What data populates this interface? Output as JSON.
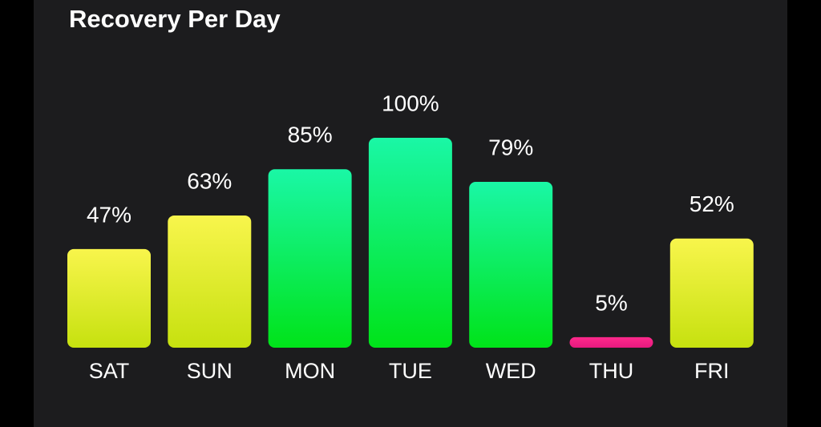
{
  "chart_data": {
    "type": "bar",
    "title": "Recovery Per Day",
    "categories": [
      "SAT",
      "SUN",
      "MON",
      "TUE",
      "WED",
      "THU",
      "FRI"
    ],
    "values": [
      47,
      63,
      85,
      100,
      79,
      5,
      52
    ],
    "value_labels": [
      "47%",
      "63%",
      "85%",
      "100%",
      "79%",
      "5%",
      "52%"
    ],
    "colors": [
      "#f8f54c",
      "#f8f54c",
      "#1af7a6",
      "#1af7a6",
      "#1af7a6",
      "#ff2a8c",
      "#f8f54c"
    ]
  }
}
